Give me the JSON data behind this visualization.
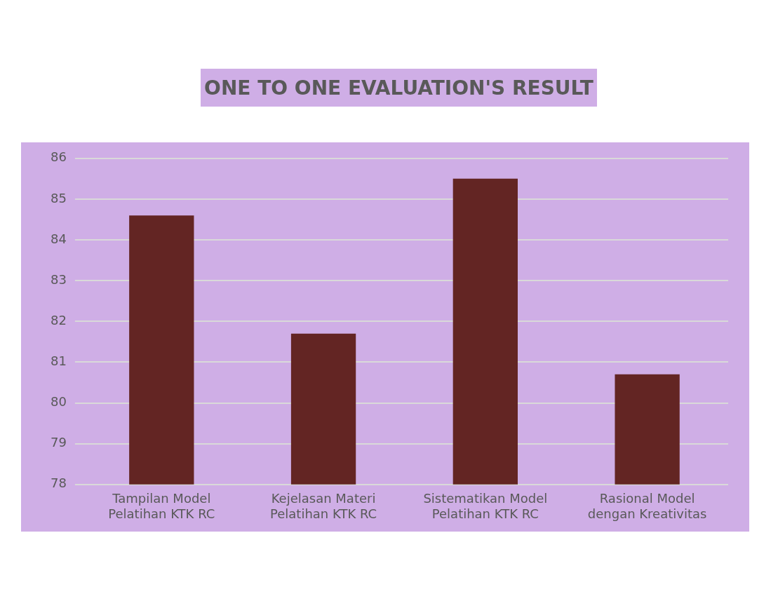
{
  "chart_data": {
    "type": "bar",
    "title": "ONE TO ONE EVALUATION'S RESULT",
    "categories": [
      "Tampilan Model Pelatihan KTK RC",
      "Kejelasan Materi Pelatihan KTK RC",
      "Sistematikan Model Pelatihan KTK RC",
      "Rasional Model dengan Kreativitas"
    ],
    "values": [
      84.6,
      81.7,
      85.5,
      80.7
    ],
    "color": "#632523",
    "ylim": [
      78,
      86
    ],
    "yticks": [
      78,
      79,
      80,
      81,
      82,
      83,
      84,
      85,
      86
    ],
    "grid": "y",
    "legend": false
  }
}
